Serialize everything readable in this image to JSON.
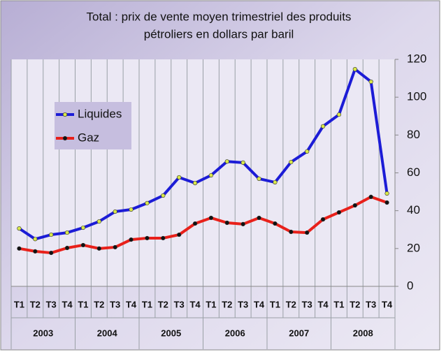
{
  "chart_data": {
    "type": "line",
    "title": [
      "Total : prix de vente moyen trimestriel des produits",
      "pétroliers en dollars par baril"
    ],
    "categories": [
      "T1",
      "T2",
      "T3",
      "T4",
      "T1",
      "T2",
      "T3",
      "T4",
      "T1",
      "T2",
      "T3",
      "T4",
      "T1",
      "T2",
      "T3",
      "T4",
      "T1",
      "T2",
      "T3",
      "T4",
      "T1",
      "T2",
      "T3",
      "T4"
    ],
    "years": [
      "2003",
      "2004",
      "2005",
      "2006",
      "2007",
      "2008"
    ],
    "series": [
      {
        "name": "Liquides",
        "color": "#1c1cd6",
        "marker_color": "#d8e84a",
        "values": [
          30.6,
          25,
          27.3,
          28.4,
          31,
          34.3,
          39.5,
          40.6,
          44,
          48,
          57.6,
          54.6,
          58.7,
          66,
          65.4,
          56.9,
          55,
          65.7,
          71.3,
          84.6,
          90.8,
          114.8,
          108.2,
          49.1
        ]
      },
      {
        "name": "Gaz",
        "color": "#e8201a",
        "marker_color": "#111111",
        "values": [
          20,
          18.5,
          17.7,
          20.3,
          21.8,
          20,
          20.7,
          24.7,
          25.5,
          25.5,
          27.3,
          33.2,
          36.2,
          33.6,
          32.9,
          36.2,
          33.2,
          28.8,
          28.4,
          35.4,
          39.1,
          42.8,
          47.3,
          44.3
        ]
      }
    ],
    "ylim": [
      0,
      120
    ],
    "yticks": [
      0,
      20,
      40,
      60,
      80,
      100,
      120
    ],
    "grid": "x",
    "legend": "top-left"
  }
}
